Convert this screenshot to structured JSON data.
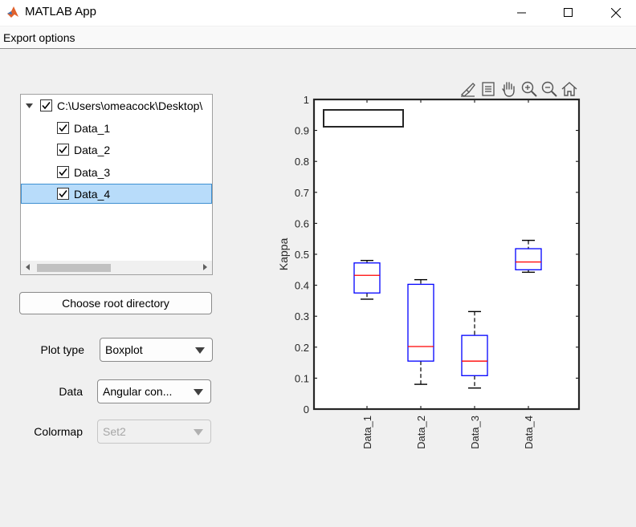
{
  "window": {
    "title": "MATLAB App"
  },
  "menu": {
    "items": [
      {
        "label": "Export options"
      }
    ]
  },
  "tree": {
    "root": {
      "label": "C:\\Users\\omeacock\\Desktop\\",
      "checked": true,
      "expanded": true
    },
    "children": [
      {
        "label": "Data_1",
        "checked": true,
        "selected": false
      },
      {
        "label": "Data_2",
        "checked": true,
        "selected": false
      },
      {
        "label": "Data_3",
        "checked": true,
        "selected": false
      },
      {
        "label": "Data_4",
        "checked": true,
        "selected": true
      }
    ]
  },
  "controls": {
    "choose_root_label": "Choose root directory",
    "plot_type": {
      "label": "Plot type",
      "value": "Boxplot"
    },
    "data": {
      "label": "Data",
      "value": "Angular con..."
    },
    "colormap": {
      "label": "Colormap",
      "value": "Set2",
      "disabled": true
    }
  },
  "axes_toolbar": {
    "icons": [
      "brush-icon",
      "data-tips-icon",
      "pan-icon",
      "zoom-in-icon",
      "zoom-out-icon",
      "home-icon"
    ]
  },
  "chart_data": {
    "type": "boxplot",
    "ylabel": "Kappa",
    "ylim": [
      0,
      1
    ],
    "yticks": [
      "0",
      "0.1",
      "0.2",
      "0.3",
      "0.4",
      "0.5",
      "0.6",
      "0.7",
      "0.8",
      "0.9",
      "1"
    ],
    "categories": [
      "Data_1",
      "Data_2",
      "Data_3",
      "Data_4"
    ],
    "boxes": [
      {
        "min": 0.355,
        "q1": 0.375,
        "median": 0.432,
        "q3": 0.472,
        "max": 0.48
      },
      {
        "min": 0.08,
        "q1": 0.155,
        "median": 0.202,
        "q3": 0.403,
        "max": 0.418
      },
      {
        "min": 0.068,
        "q1": 0.108,
        "median": 0.155,
        "q3": 0.238,
        "max": 0.315
      },
      {
        "min": 0.442,
        "q1": 0.45,
        "median": 0.475,
        "q3": 0.518,
        "max": 0.545
      }
    ],
    "box_color": "#0000ff",
    "median_color": "#ff0000",
    "whisker_color": "#000000",
    "legend": {
      "placement": "top-left",
      "entries": []
    }
  }
}
